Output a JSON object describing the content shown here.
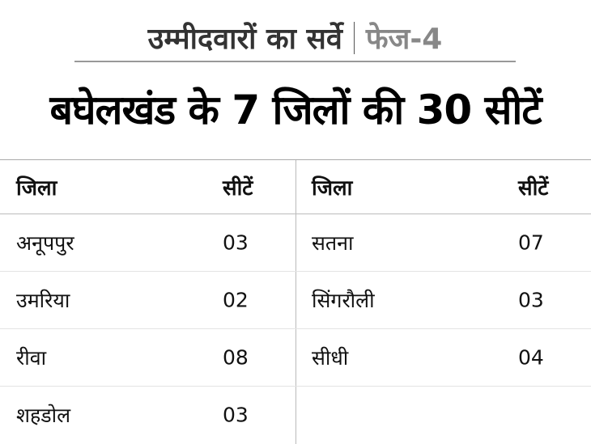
{
  "kicker": {
    "main": "उम्मीदवारों का सर्वे",
    "phase": "फेज-4"
  },
  "title": "बघेलखंड के 7 जिलों की 30 सीटें",
  "headers": {
    "district": "जिला",
    "seats": "सीटें"
  },
  "left": [
    {
      "district": "अनूपपुर",
      "seats": "03"
    },
    {
      "district": "उमरिया",
      "seats": "02"
    },
    {
      "district": "रीवा",
      "seats": "08"
    },
    {
      "district": "शहडोल",
      "seats": "03"
    }
  ],
  "right": [
    {
      "district": "सतना",
      "seats": "07"
    },
    {
      "district": "सिंगरौली",
      "seats": "03"
    },
    {
      "district": "सीधी",
      "seats": "04"
    }
  ]
}
